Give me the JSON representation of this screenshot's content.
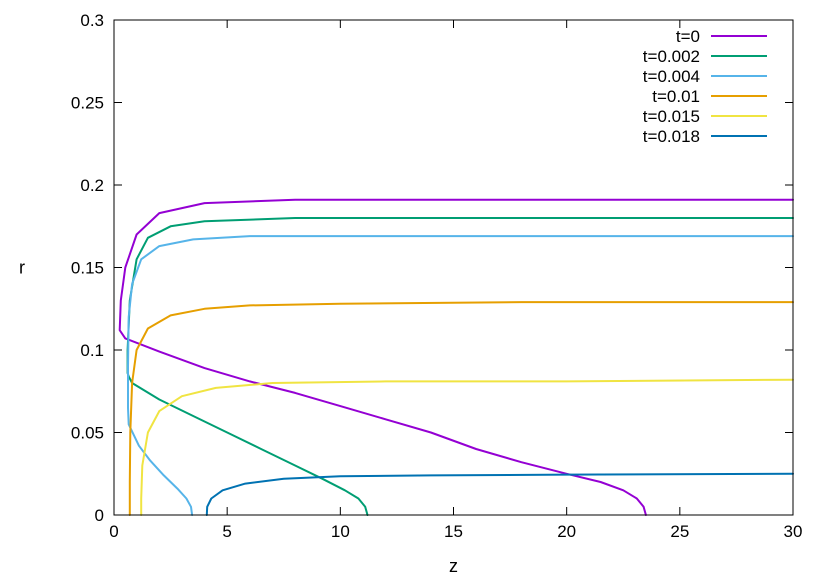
{
  "chart_data": {
    "type": "line",
    "title": "",
    "xlabel": "z",
    "ylabel": "r",
    "xlim": [
      0,
      30
    ],
    "ylim": [
      0,
      0.3
    ],
    "xticks": [
      "0",
      "5",
      "10",
      "15",
      "20",
      "25",
      "30"
    ],
    "yticks": [
      "0",
      "0.05",
      "0.1",
      "0.15",
      "0.2",
      "0.25",
      "0.3"
    ],
    "xtick_values": [
      0,
      5,
      10,
      15,
      20,
      25,
      30
    ],
    "ytick_values": [
      0,
      0.05,
      0.1,
      0.15,
      0.2,
      0.25,
      0.3
    ],
    "grid": false,
    "legend_position": "top-right",
    "series": [
      {
        "name": "t=0",
        "color": "#9400d3",
        "points": [
          [
            23.5,
            0.0
          ],
          [
            23.4,
            0.005
          ],
          [
            23.1,
            0.01
          ],
          [
            22.5,
            0.015
          ],
          [
            21.5,
            0.02
          ],
          [
            20.0,
            0.025
          ],
          [
            18.0,
            0.032
          ],
          [
            16.0,
            0.04
          ],
          [
            14.0,
            0.05
          ],
          [
            12.0,
            0.058
          ],
          [
            10.0,
            0.066
          ],
          [
            8.0,
            0.074
          ],
          [
            6.0,
            0.081
          ],
          [
            4.0,
            0.089
          ],
          [
            2.0,
            0.099
          ],
          [
            0.5,
            0.107
          ],
          [
            0.25,
            0.112
          ],
          [
            0.3,
            0.13
          ],
          [
            0.5,
            0.15
          ],
          [
            1.0,
            0.17
          ],
          [
            2.0,
            0.183
          ],
          [
            4.0,
            0.189
          ],
          [
            8.0,
            0.191
          ],
          [
            15.0,
            0.191
          ],
          [
            30.0,
            0.191
          ]
        ]
      },
      {
        "name": "t=0.002",
        "color": "#009e73",
        "points": [
          [
            11.2,
            0.0
          ],
          [
            11.1,
            0.005
          ],
          [
            10.8,
            0.01
          ],
          [
            10.2,
            0.015
          ],
          [
            9.2,
            0.022
          ],
          [
            8.0,
            0.03
          ],
          [
            6.5,
            0.04
          ],
          [
            5.0,
            0.05
          ],
          [
            3.5,
            0.06
          ],
          [
            2.0,
            0.07
          ],
          [
            0.8,
            0.08
          ],
          [
            0.65,
            0.084
          ],
          [
            0.6,
            0.086
          ],
          [
            0.6,
            0.1
          ],
          [
            0.7,
            0.13
          ],
          [
            1.0,
            0.155
          ],
          [
            1.5,
            0.168
          ],
          [
            2.5,
            0.175
          ],
          [
            4.0,
            0.178
          ],
          [
            8.0,
            0.18
          ],
          [
            15.0,
            0.18
          ],
          [
            30.0,
            0.18
          ]
        ]
      },
      {
        "name": "t=0.004",
        "color": "#56b4e9",
        "points": [
          [
            3.45,
            0.0
          ],
          [
            3.4,
            0.005
          ],
          [
            3.2,
            0.01
          ],
          [
            2.8,
            0.016
          ],
          [
            2.2,
            0.024
          ],
          [
            1.6,
            0.033
          ],
          [
            1.1,
            0.042
          ],
          [
            0.75,
            0.052
          ],
          [
            0.65,
            0.055
          ],
          [
            0.62,
            0.065
          ],
          [
            0.62,
            0.09
          ],
          [
            0.65,
            0.12
          ],
          [
            0.8,
            0.14
          ],
          [
            1.2,
            0.155
          ],
          [
            2.0,
            0.163
          ],
          [
            3.5,
            0.167
          ],
          [
            6.0,
            0.169
          ],
          [
            12.0,
            0.169
          ],
          [
            30.0,
            0.169
          ]
        ]
      },
      {
        "name": "t=0.01",
        "color": "#e69f00",
        "points": [
          [
            0.7,
            0.0
          ],
          [
            0.7,
            0.02
          ],
          [
            0.72,
            0.05
          ],
          [
            0.8,
            0.08
          ],
          [
            1.0,
            0.1
          ],
          [
            1.5,
            0.113
          ],
          [
            2.5,
            0.121
          ],
          [
            4.0,
            0.125
          ],
          [
            6.0,
            0.127
          ],
          [
            10.0,
            0.128
          ],
          [
            18.0,
            0.129
          ],
          [
            30.0,
            0.129
          ]
        ]
      },
      {
        "name": "t=0.015",
        "color": "#f0e442",
        "points": [
          [
            1.2,
            0.0
          ],
          [
            1.2,
            0.01
          ],
          [
            1.25,
            0.03
          ],
          [
            1.5,
            0.05
          ],
          [
            2.0,
            0.063
          ],
          [
            3.0,
            0.072
          ],
          [
            4.5,
            0.077
          ],
          [
            7.0,
            0.08
          ],
          [
            12.0,
            0.081
          ],
          [
            20.0,
            0.081
          ],
          [
            30.0,
            0.082
          ]
        ]
      },
      {
        "name": "t=0.018",
        "color": "#0072b2",
        "points": [
          [
            4.1,
            0.0
          ],
          [
            4.12,
            0.005
          ],
          [
            4.3,
            0.01
          ],
          [
            4.8,
            0.015
          ],
          [
            5.8,
            0.019
          ],
          [
            7.5,
            0.022
          ],
          [
            10.0,
            0.0235
          ],
          [
            14.0,
            0.024
          ],
          [
            20.0,
            0.0245
          ],
          [
            30.0,
            0.025
          ]
        ]
      }
    ]
  }
}
